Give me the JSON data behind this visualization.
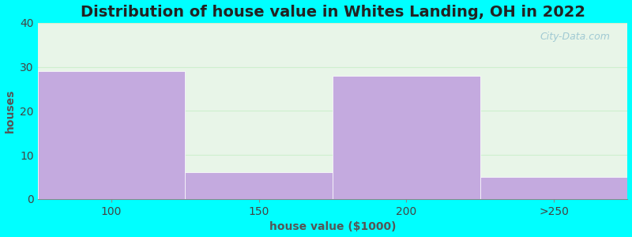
{
  "title": "Distribution of house value in Whites Landing, OH in 2022",
  "xlabel": "house value ($1000)",
  "ylabel": "houses",
  "categories": [
    "100",
    "150",
    "200",
    ">250"
  ],
  "values": [
    29,
    6,
    28,
    5
  ],
  "bar_color": "#C4AADF",
  "ylim": [
    0,
    40
  ],
  "yticks": [
    0,
    10,
    20,
    30,
    40
  ],
  "figure_bg": "#00FFFF",
  "plot_bg": "#E8F5E8",
  "title_fontsize": 14,
  "label_fontsize": 10,
  "tick_fontsize": 10,
  "watermark": "City-Data.com",
  "grid_color": "#D8F0D8",
  "spine_color": "#888888"
}
